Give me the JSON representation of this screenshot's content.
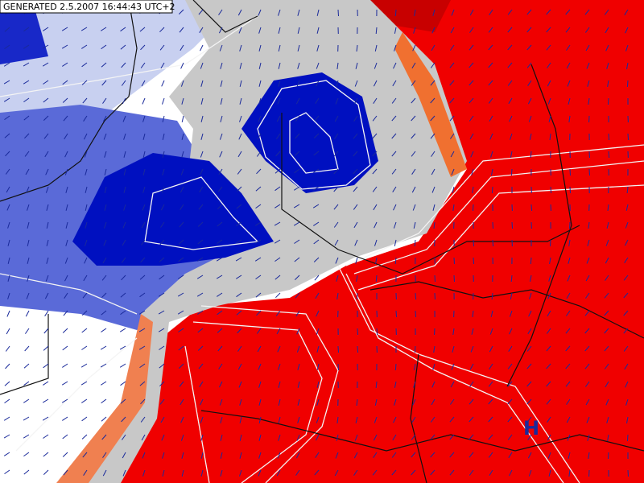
{
  "header": {
    "generated": "GENERATED 2.5.2007 16:44:43 UTC+2"
  },
  "map": {
    "pressure_labels": [
      "H"
    ]
  }
}
